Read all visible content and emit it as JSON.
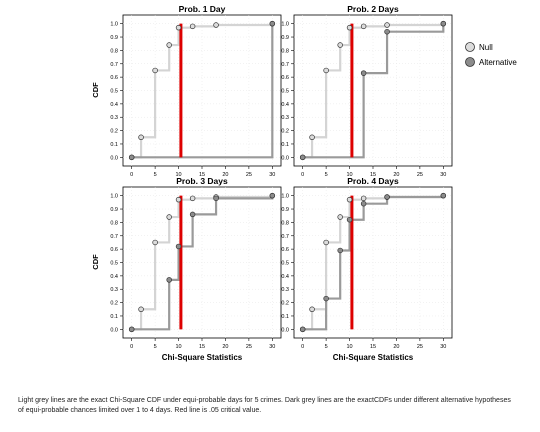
{
  "caption": "Light grey lines are the exact Chi-Square CDF under equi-probable days for 5 crimes. Dark grey lines are the exactCDFs under different alternative hypotheses of equi-probable chances limited over 1 to 4 days. Red line is .05 critical value.",
  "chart_data": {
    "type": "line",
    "step": true,
    "xlabel": "Chi-Square Statistics",
    "ylabel": "CDF",
    "xticks": [
      0,
      5,
      10,
      15,
      20,
      25,
      30
    ],
    "yticks": [
      "0.0",
      "0.1",
      "0.2",
      "0.3",
      "0.4",
      "0.5",
      "0.6",
      "0.7",
      "0.8",
      "0.9",
      "1.0"
    ],
    "xlim": [
      -1,
      31
    ],
    "ylim": [
      -0.02,
      1.02
    ],
    "critical_value": 10.5,
    "legend": {
      "position": "right",
      "items": [
        {
          "name": "Null",
          "color": "#d6d6d6"
        },
        {
          "name": "Alternative",
          "color": "#8a8a8a"
        }
      ]
    },
    "colors": {
      "null_line": "#d4d4d4",
      "alt_line": "#9a9a9a",
      "critical": "#dd0000",
      "grid": "#e6e6e6"
    },
    "panels": [
      {
        "title": "Prob. 1 Day",
        "series": [
          {
            "name": "Null",
            "x": [
              0,
              2,
              5,
              8,
              10,
              13,
              18,
              30
            ],
            "y": [
              0.0,
              0.15,
              0.65,
              0.84,
              0.97,
              0.98,
              0.99,
              1.0
            ]
          },
          {
            "name": "Alternative",
            "x": [
              0,
              30
            ],
            "y": [
              0.0,
              1.0
            ]
          }
        ]
      },
      {
        "title": "Prob. 2 Days",
        "series": [
          {
            "name": "Null",
            "x": [
              0,
              2,
              5,
              8,
              10,
              13,
              18,
              30
            ],
            "y": [
              0.0,
              0.15,
              0.65,
              0.84,
              0.97,
              0.98,
              0.99,
              1.0
            ]
          },
          {
            "name": "Alternative",
            "x": [
              0,
              13,
              18,
              30
            ],
            "y": [
              0.0,
              0.63,
              0.94,
              1.0
            ]
          }
        ]
      },
      {
        "title": "Prob. 3 Days",
        "series": [
          {
            "name": "Null",
            "x": [
              0,
              2,
              5,
              8,
              10,
              13,
              18,
              30
            ],
            "y": [
              0.0,
              0.15,
              0.65,
              0.84,
              0.97,
              0.98,
              0.99,
              1.0
            ]
          },
          {
            "name": "Alternative",
            "x": [
              0,
              8,
              10,
              13,
              18,
              30
            ],
            "y": [
              0.0,
              0.37,
              0.62,
              0.86,
              0.98,
              1.0
            ]
          }
        ]
      },
      {
        "title": "Prob. 4 Days",
        "series": [
          {
            "name": "Null",
            "x": [
              0,
              2,
              5,
              8,
              10,
              13,
              18,
              30
            ],
            "y": [
              0.0,
              0.15,
              0.65,
              0.84,
              0.97,
              0.98,
              0.99,
              1.0
            ]
          },
          {
            "name": "Alternative",
            "x": [
              0,
              5,
              8,
              10,
              13,
              18,
              30
            ],
            "y": [
              0.0,
              0.23,
              0.59,
              0.82,
              0.94,
              0.99,
              1.0
            ]
          }
        ]
      }
    ]
  }
}
